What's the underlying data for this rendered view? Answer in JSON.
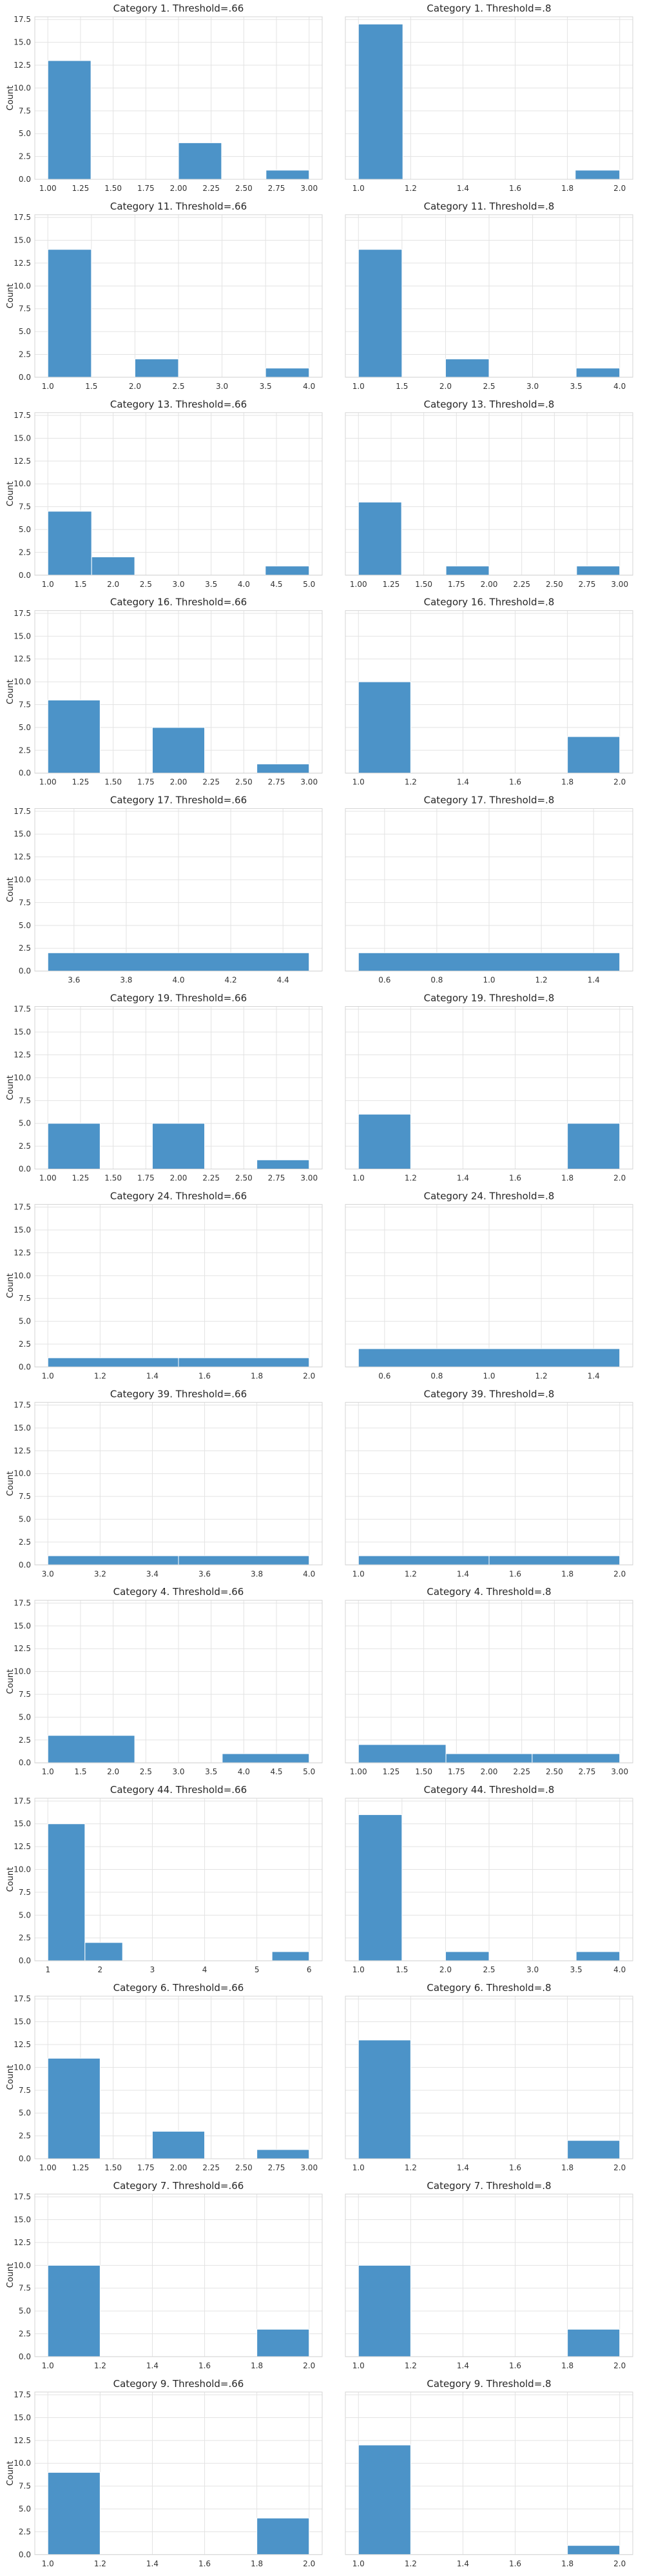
{
  "figure": {
    "ylabel": "Count",
    "yticks": [
      "0.0",
      "2.5",
      "5.0",
      "7.5",
      "10.0",
      "12.5",
      "15.0",
      "17.5"
    ],
    "ylim": [
      0,
      17.8
    ],
    "bar_color": "#4c93c8",
    "grid": true,
    "layout": "13 rows × 2 columns, shared y-axis"
  },
  "chart_data": [
    {
      "type": "bar",
      "title": "Category 1. Threshold=.66",
      "xlim": [
        0.9,
        3.1
      ],
      "xticks": [
        "1.00",
        "1.25",
        "1.50",
        "1.75",
        "2.00",
        "2.25",
        "2.50",
        "2.75",
        "3.00"
      ],
      "bars": [
        {
          "x0": 1.0,
          "x1": 1.33,
          "count": 13
        },
        {
          "x0": 2.0,
          "x1": 2.33,
          "count": 4
        },
        {
          "x0": 2.67,
          "x1": 3.0,
          "count": 1
        }
      ]
    },
    {
      "type": "bar",
      "title": "Category 1. Threshold=.8",
      "xlim": [
        0.95,
        2.05
      ],
      "xticks": [
        "1.0",
        "1.2",
        "1.4",
        "1.6",
        "1.8",
        "2.0"
      ],
      "bars": [
        {
          "x0": 1.0,
          "x1": 1.17,
          "count": 17
        },
        {
          "x0": 1.83,
          "x1": 2.0,
          "count": 1
        }
      ]
    },
    {
      "type": "bar",
      "title": "Category 11. Threshold=.66",
      "xlim": [
        0.85,
        4.15
      ],
      "xticks": [
        "1.0",
        "1.5",
        "2.0",
        "2.5",
        "3.0",
        "3.5",
        "4.0"
      ],
      "bars": [
        {
          "x0": 1.0,
          "x1": 1.5,
          "count": 14
        },
        {
          "x0": 2.0,
          "x1": 2.5,
          "count": 2
        },
        {
          "x0": 3.5,
          "x1": 4.0,
          "count": 1
        }
      ]
    },
    {
      "type": "bar",
      "title": "Category 11. Threshold=.8",
      "xlim": [
        0.85,
        4.15
      ],
      "xticks": [
        "1.0",
        "1.5",
        "2.0",
        "2.5",
        "3.0",
        "3.5",
        "4.0"
      ],
      "bars": [
        {
          "x0": 1.0,
          "x1": 1.5,
          "count": 14
        },
        {
          "x0": 2.0,
          "x1": 2.5,
          "count": 2
        },
        {
          "x0": 3.5,
          "x1": 4.0,
          "count": 1
        }
      ]
    },
    {
      "type": "bar",
      "title": "Category 13. Threshold=.66",
      "xlim": [
        0.8,
        5.2
      ],
      "xticks": [
        "1.0",
        "1.5",
        "2.0",
        "2.5",
        "3.0",
        "3.5",
        "4.0",
        "4.5",
        "5.0"
      ],
      "bars": [
        {
          "x0": 1.0,
          "x1": 1.67,
          "count": 7
        },
        {
          "x0": 1.67,
          "x1": 2.33,
          "count": 2
        },
        {
          "x0": 4.33,
          "x1": 5.0,
          "count": 1
        }
      ]
    },
    {
      "type": "bar",
      "title": "Category 13. Threshold=.8",
      "xlim": [
        0.9,
        3.1
      ],
      "xticks": [
        "1.00",
        "1.25",
        "1.50",
        "1.75",
        "2.00",
        "2.25",
        "2.50",
        "2.75",
        "3.00"
      ],
      "bars": [
        {
          "x0": 1.0,
          "x1": 1.33,
          "count": 8
        },
        {
          "x0": 1.67,
          "x1": 2.0,
          "count": 1
        },
        {
          "x0": 2.67,
          "x1": 3.0,
          "count": 1
        }
      ]
    },
    {
      "type": "bar",
      "title": "Category 16. Threshold=.66",
      "xlim": [
        0.9,
        3.1
      ],
      "xticks": [
        "1.00",
        "1.25",
        "1.50",
        "1.75",
        "2.00",
        "2.25",
        "2.50",
        "2.75",
        "3.00"
      ],
      "bars": [
        {
          "x0": 1.0,
          "x1": 1.4,
          "count": 8
        },
        {
          "x0": 1.8,
          "x1": 2.2,
          "count": 5
        },
        {
          "x0": 2.6,
          "x1": 3.0,
          "count": 1
        }
      ]
    },
    {
      "type": "bar",
      "title": "Category 16. Threshold=.8",
      "xlim": [
        0.95,
        2.05
      ],
      "xticks": [
        "1.0",
        "1.2",
        "1.4",
        "1.6",
        "1.8",
        "2.0"
      ],
      "bars": [
        {
          "x0": 1.0,
          "x1": 1.2,
          "count": 10
        },
        {
          "x0": 1.8,
          "x1": 2.0,
          "count": 4
        }
      ]
    },
    {
      "type": "bar",
      "title": "Category 17. Threshold=.66",
      "xlim": [
        3.45,
        4.55
      ],
      "xticks": [
        "3.6",
        "3.8",
        "4.0",
        "4.2",
        "4.4"
      ],
      "bars": [
        {
          "x0": 3.5,
          "x1": 4.5,
          "count": 2
        }
      ]
    },
    {
      "type": "bar",
      "title": "Category 17. Threshold=.8",
      "xlim": [
        0.45,
        1.55
      ],
      "xticks": [
        "0.6",
        "0.8",
        "1.0",
        "1.2",
        "1.4"
      ],
      "bars": [
        {
          "x0": 0.5,
          "x1": 1.5,
          "count": 2
        }
      ]
    },
    {
      "type": "bar",
      "title": "Category 19. Threshold=.66",
      "xlim": [
        0.9,
        3.1
      ],
      "xticks": [
        "1.00",
        "1.25",
        "1.50",
        "1.75",
        "2.00",
        "2.25",
        "2.50",
        "2.75",
        "3.00"
      ],
      "bars": [
        {
          "x0": 1.0,
          "x1": 1.4,
          "count": 5
        },
        {
          "x0": 1.8,
          "x1": 2.2,
          "count": 5
        },
        {
          "x0": 2.6,
          "x1": 3.0,
          "count": 1
        }
      ]
    },
    {
      "type": "bar",
      "title": "Category 19. Threshold=.8",
      "xlim": [
        0.95,
        2.05
      ],
      "xticks": [
        "1.0",
        "1.2",
        "1.4",
        "1.6",
        "1.8",
        "2.0"
      ],
      "bars": [
        {
          "x0": 1.0,
          "x1": 1.2,
          "count": 6
        },
        {
          "x0": 1.8,
          "x1": 2.0,
          "count": 5
        }
      ]
    },
    {
      "type": "bar",
      "title": "Category 24. Threshold=.66",
      "xlim": [
        0.95,
        2.05
      ],
      "xticks": [
        "1.0",
        "1.2",
        "1.4",
        "1.6",
        "1.8",
        "2.0"
      ],
      "bars": [
        {
          "x0": 1.0,
          "x1": 1.5,
          "count": 1
        },
        {
          "x0": 1.5,
          "x1": 2.0,
          "count": 1
        }
      ]
    },
    {
      "type": "bar",
      "title": "Category 24. Threshold=.8",
      "xlim": [
        0.45,
        1.55
      ],
      "xticks": [
        "0.6",
        "0.8",
        "1.0",
        "1.2",
        "1.4"
      ],
      "bars": [
        {
          "x0": 0.5,
          "x1": 1.5,
          "count": 2
        }
      ]
    },
    {
      "type": "bar",
      "title": "Category 39. Threshold=.66",
      "xlim": [
        2.95,
        4.05
      ],
      "xticks": [
        "3.0",
        "3.2",
        "3.4",
        "3.6",
        "3.8",
        "4.0"
      ],
      "bars": [
        {
          "x0": 3.0,
          "x1": 3.5,
          "count": 1
        },
        {
          "x0": 3.5,
          "x1": 4.0,
          "count": 1
        }
      ]
    },
    {
      "type": "bar",
      "title": "Category 39. Threshold=.8",
      "xlim": [
        0.95,
        2.05
      ],
      "xticks": [
        "1.0",
        "1.2",
        "1.4",
        "1.6",
        "1.8",
        "2.0"
      ],
      "bars": [
        {
          "x0": 1.0,
          "x1": 1.5,
          "count": 1
        },
        {
          "x0": 1.5,
          "x1": 2.0,
          "count": 1
        }
      ]
    },
    {
      "type": "bar",
      "title": "Category 4. Threshold=.66",
      "xlim": [
        0.8,
        5.2
      ],
      "xticks": [
        "1.0",
        "1.5",
        "2.0",
        "2.5",
        "3.0",
        "3.5",
        "4.0",
        "4.5",
        "5.0"
      ],
      "bars": [
        {
          "x0": 1.0,
          "x1": 2.33,
          "count": 3
        },
        {
          "x0": 3.67,
          "x1": 5.0,
          "count": 1
        }
      ]
    },
    {
      "type": "bar",
      "title": "Category 4. Threshold=.8",
      "xlim": [
        0.9,
        3.1
      ],
      "xticks": [
        "1.00",
        "1.25",
        "1.50",
        "1.75",
        "2.00",
        "2.25",
        "2.50",
        "2.75",
        "3.00"
      ],
      "bars": [
        {
          "x0": 1.0,
          "x1": 1.67,
          "count": 2
        },
        {
          "x0": 1.67,
          "x1": 2.33,
          "count": 1
        },
        {
          "x0": 2.33,
          "x1": 3.0,
          "count": 1
        }
      ]
    },
    {
      "type": "bar",
      "title": "Category 44. Threshold=.66",
      "xlim": [
        0.75,
        6.25
      ],
      "xticks": [
        "1",
        "2",
        "3",
        "4",
        "5",
        "6"
      ],
      "bars": [
        {
          "x0": 1.0,
          "x1": 1.71,
          "count": 15
        },
        {
          "x0": 1.71,
          "x1": 2.43,
          "count": 2
        },
        {
          "x0": 5.29,
          "x1": 6.0,
          "count": 1
        }
      ]
    },
    {
      "type": "bar",
      "title": "Category 44. Threshold=.8",
      "xlim": [
        0.85,
        4.15
      ],
      "xticks": [
        "1.0",
        "1.5",
        "2.0",
        "2.5",
        "3.0",
        "3.5",
        "4.0"
      ],
      "bars": [
        {
          "x0": 1.0,
          "x1": 1.5,
          "count": 16
        },
        {
          "x0": 2.0,
          "x1": 2.5,
          "count": 1
        },
        {
          "x0": 3.5,
          "x1": 4.0,
          "count": 1
        }
      ]
    },
    {
      "type": "bar",
      "title": "Category 6. Threshold=.66",
      "xlim": [
        0.9,
        3.1
      ],
      "xticks": [
        "1.00",
        "1.25",
        "1.50",
        "1.75",
        "2.00",
        "2.25",
        "2.50",
        "2.75",
        "3.00"
      ],
      "bars": [
        {
          "x0": 1.0,
          "x1": 1.4,
          "count": 11
        },
        {
          "x0": 1.8,
          "x1": 2.2,
          "count": 3
        },
        {
          "x0": 2.6,
          "x1": 3.0,
          "count": 1
        }
      ]
    },
    {
      "type": "bar",
      "title": "Category 6. Threshold=.8",
      "xlim": [
        0.95,
        2.05
      ],
      "xticks": [
        "1.0",
        "1.2",
        "1.4",
        "1.6",
        "1.8",
        "2.0"
      ],
      "bars": [
        {
          "x0": 1.0,
          "x1": 1.2,
          "count": 13
        },
        {
          "x0": 1.8,
          "x1": 2.0,
          "count": 2
        }
      ]
    },
    {
      "type": "bar",
      "title": "Category 7. Threshold=.66",
      "xlim": [
        0.95,
        2.05
      ],
      "xticks": [
        "1.0",
        "1.2",
        "1.4",
        "1.6",
        "1.8",
        "2.0"
      ],
      "bars": [
        {
          "x0": 1.0,
          "x1": 1.2,
          "count": 10
        },
        {
          "x0": 1.8,
          "x1": 2.0,
          "count": 3
        }
      ]
    },
    {
      "type": "bar",
      "title": "Category 7. Threshold=.8",
      "xlim": [
        0.95,
        2.05
      ],
      "xticks": [
        "1.0",
        "1.2",
        "1.4",
        "1.6",
        "1.8",
        "2.0"
      ],
      "bars": [
        {
          "x0": 1.0,
          "x1": 1.2,
          "count": 10
        },
        {
          "x0": 1.8,
          "x1": 2.0,
          "count": 3
        }
      ]
    },
    {
      "type": "bar",
      "title": "Category 9. Threshold=.66",
      "xlim": [
        0.95,
        2.05
      ],
      "xticks": [
        "1.0",
        "1.2",
        "1.4",
        "1.6",
        "1.8",
        "2.0"
      ],
      "bars": [
        {
          "x0": 1.0,
          "x1": 1.2,
          "count": 9
        },
        {
          "x0": 1.8,
          "x1": 2.0,
          "count": 4
        }
      ]
    },
    {
      "type": "bar",
      "title": "Category 9. Threshold=.8",
      "xlim": [
        0.95,
        2.05
      ],
      "xticks": [
        "1.0",
        "1.2",
        "1.4",
        "1.6",
        "1.8",
        "2.0"
      ],
      "bars": [
        {
          "x0": 1.0,
          "x1": 1.2,
          "count": 12
        },
        {
          "x0": 1.8,
          "x1": 2.0,
          "count": 1
        }
      ]
    }
  ]
}
